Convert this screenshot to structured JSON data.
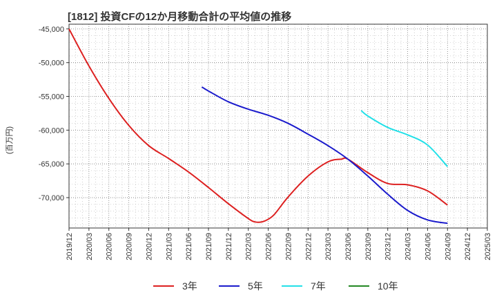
{
  "chart_data": {
    "type": "line",
    "title": "[1812]  投資CFの12か月移動合計の平均値の推移",
    "ylabel": "(百万円)",
    "xlabel": "",
    "ylim": [
      -74500,
      -44300
    ],
    "y_ticks": [
      -45000,
      -50000,
      -55000,
      -60000,
      -65000,
      -70000
    ],
    "y_tick_labels": [
      "-45,000",
      "-50,000",
      "-55,000",
      "-60,000",
      "-65,000",
      "-70,000"
    ],
    "x_tick_labels": [
      "2019/12",
      "2020/03",
      "2020/06",
      "2020/09",
      "2020/12",
      "2021/03",
      "2021/06",
      "2021/09",
      "2021/12",
      "2022/03",
      "2022/06",
      "2022/09",
      "2022/12",
      "2023/03",
      "2023/06",
      "2023/09",
      "2023/12",
      "2024/03",
      "2024/06",
      "2024/09",
      "2024/12",
      "2025/03"
    ],
    "grid": true,
    "legend_position": "bottom",
    "series": [
      {
        "name": "3年",
        "color": "#dd2020",
        "x": [
          "2019/12",
          "2020/03",
          "2020/06",
          "2020/09",
          "2020/12",
          "2021/03",
          "2021/06",
          "2021/09",
          "2021/12",
          "2022/03",
          "2022/04",
          "2022/05",
          "2022/06",
          "2022/07",
          "2022/09",
          "2022/12",
          "2023/03",
          "2023/05",
          "2023/06",
          "2023/09",
          "2023/12",
          "2024/03",
          "2024/06",
          "2024/09"
        ],
        "values": [
          -45000,
          -50500,
          -55300,
          -59300,
          -62300,
          -64200,
          -66200,
          -68500,
          -70900,
          -73100,
          -73600,
          -73600,
          -73200,
          -72400,
          -69900,
          -66800,
          -64700,
          -64300,
          -64300,
          -66300,
          -67900,
          -68100,
          -69000,
          -71100
        ]
      },
      {
        "name": "5年",
        "color": "#1a1acc",
        "x": [
          "2021/08",
          "2021/09",
          "2021/12",
          "2022/03",
          "2022/06",
          "2022/09",
          "2022/12",
          "2023/03",
          "2023/06",
          "2023/09",
          "2023/12",
          "2024/03",
          "2024/06",
          "2024/09"
        ],
        "values": [
          -53600,
          -54200,
          -55800,
          -56900,
          -57800,
          -59000,
          -60600,
          -62300,
          -64300,
          -66800,
          -69500,
          -71900,
          -73300,
          -73800
        ]
      },
      {
        "name": "7年",
        "color": "#22e0e8",
        "x": [
          "2023/08",
          "2023/09",
          "2023/12",
          "2024/03",
          "2024/06",
          "2024/09"
        ],
        "values": [
          -57100,
          -57900,
          -59600,
          -60700,
          -62200,
          -65400
        ]
      },
      {
        "name": "10年",
        "color": "#228822",
        "x": [],
        "values": []
      }
    ]
  }
}
